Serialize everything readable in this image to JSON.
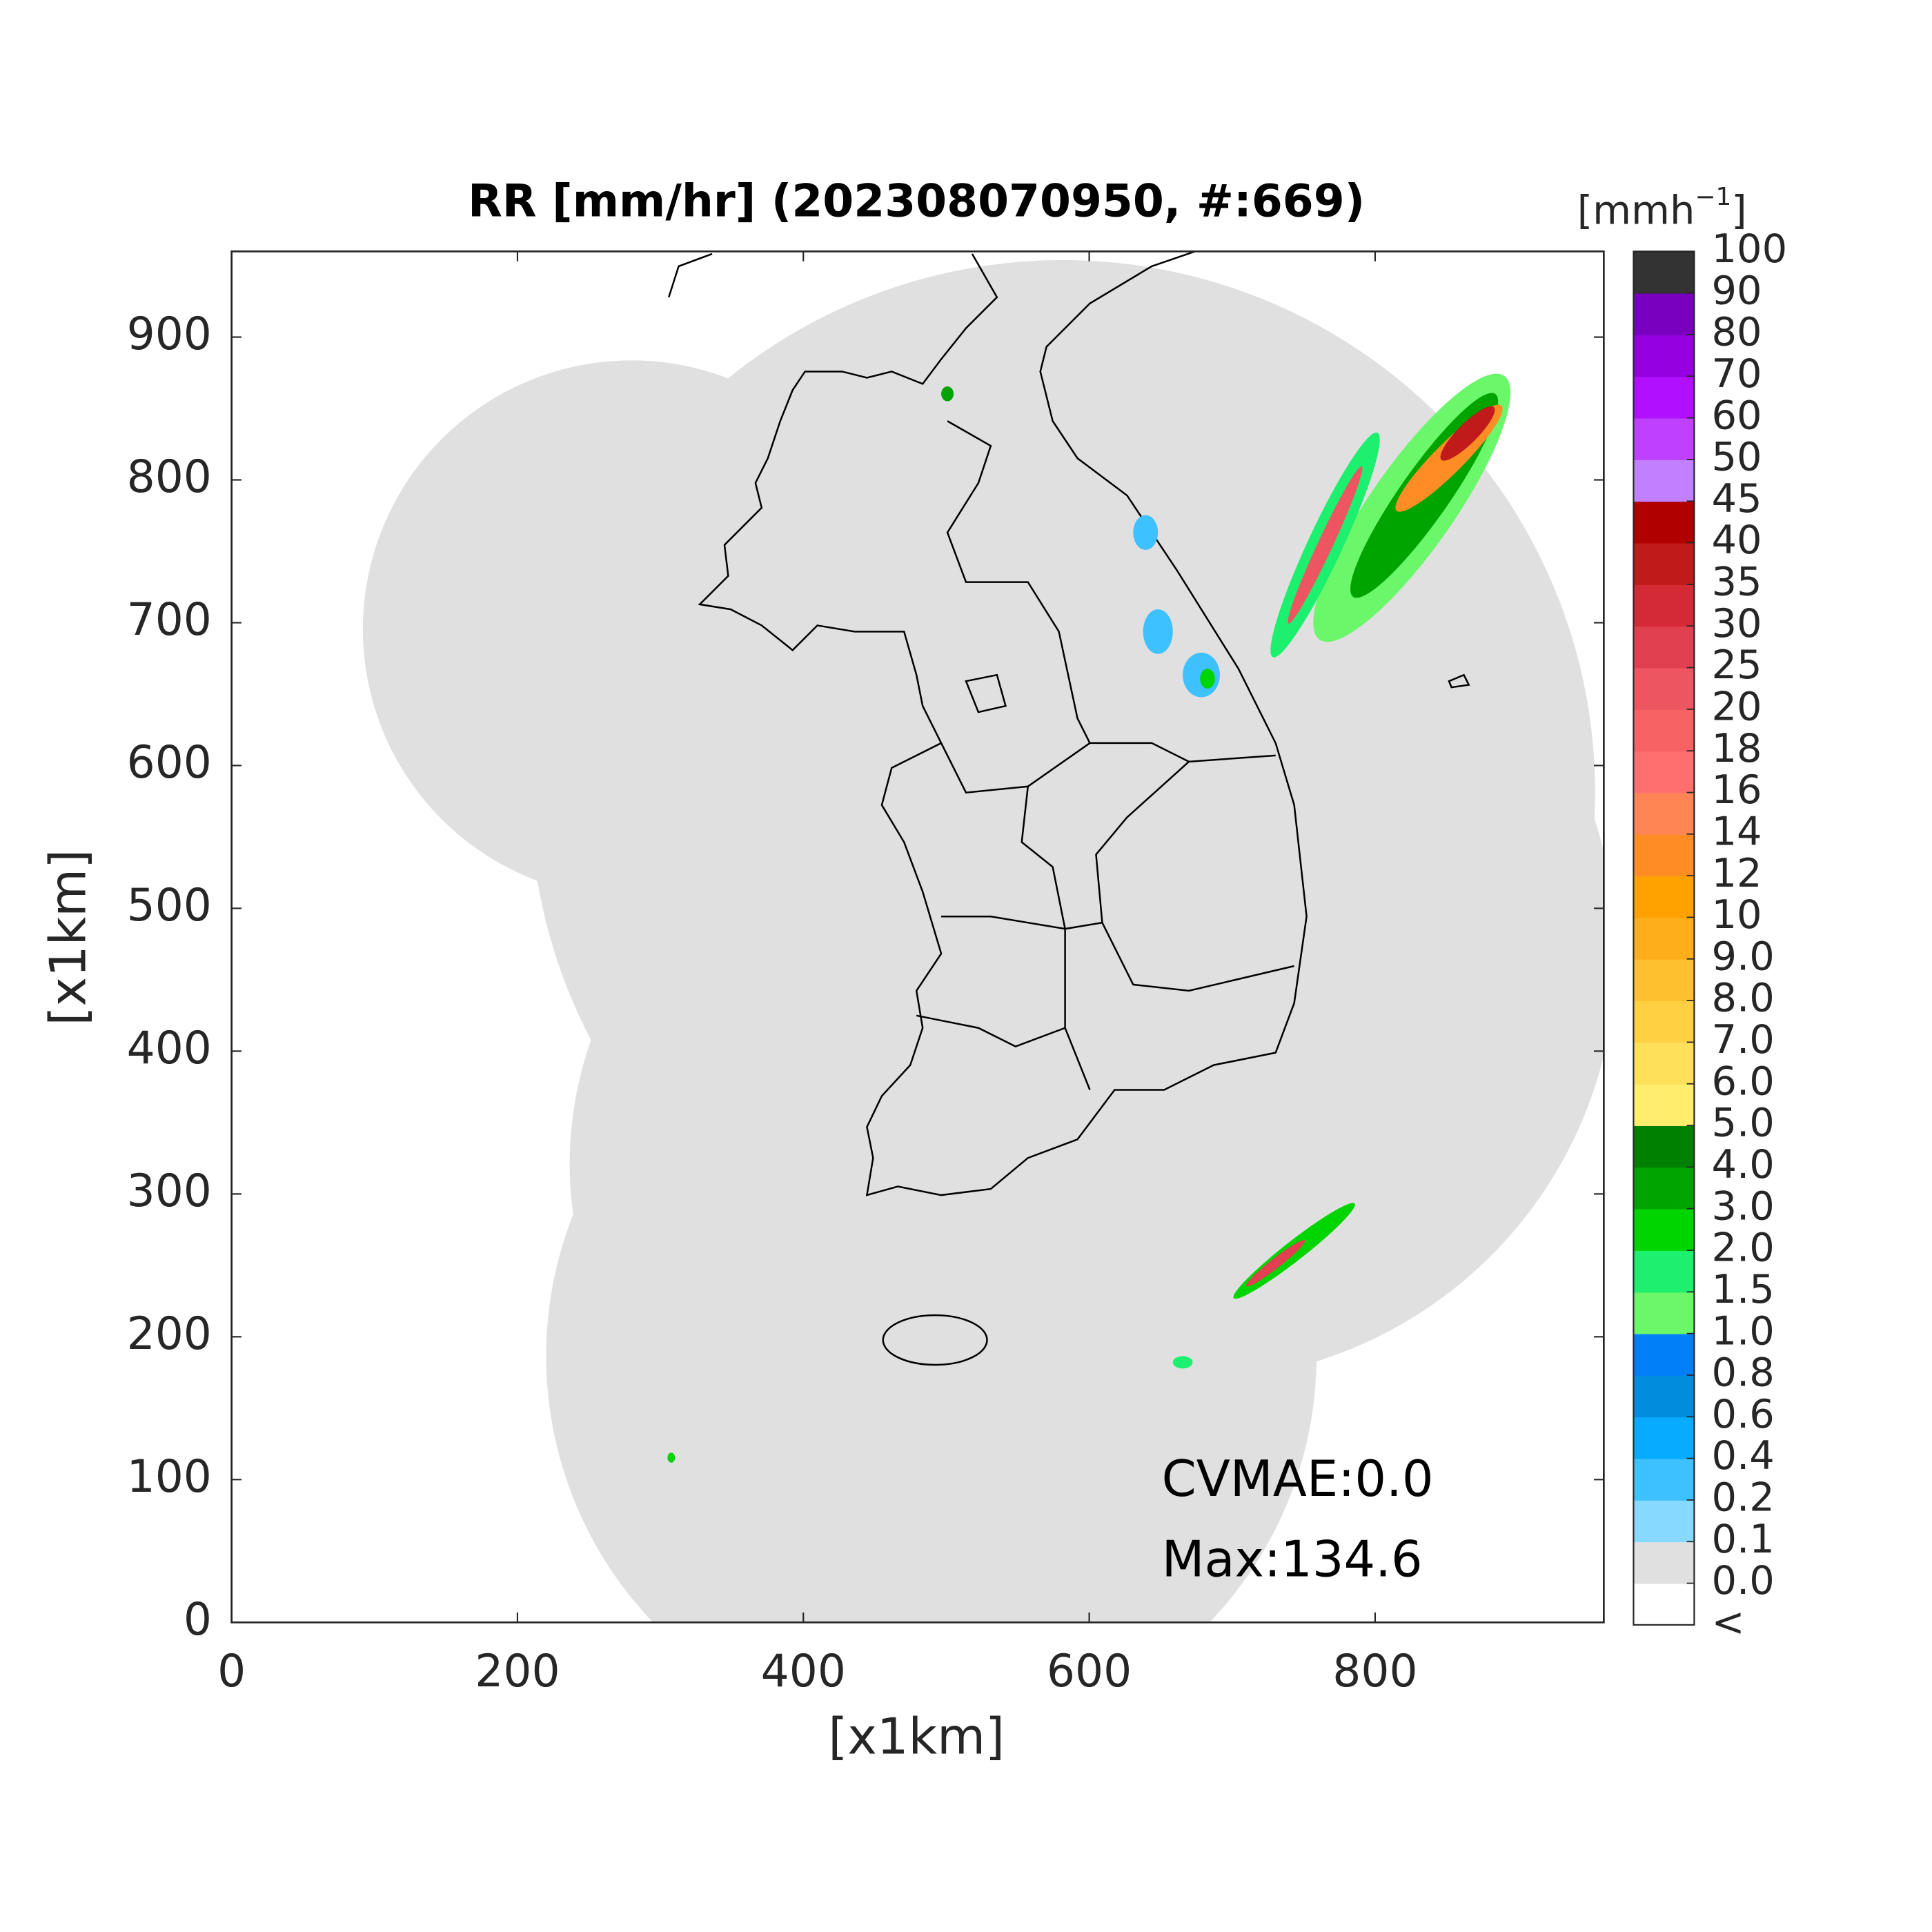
{
  "chart_data": {
    "type": "map",
    "title": "RR [mm/hr] (202308070950, #:669)",
    "xlabel": "[x1km]",
    "ylabel": "[x1km]",
    "xlim": [
      0,
      960
    ],
    "ylim": [
      0,
      960
    ],
    "xticks": [
      0,
      200,
      400,
      600,
      800
    ],
    "yticks": [
      0,
      100,
      200,
      300,
      400,
      500,
      600,
      700,
      800,
      900
    ],
    "annotations": [
      "CVMAE:0.0",
      "Max:134.6"
    ],
    "colorbar": {
      "unit": "[mmh",
      "unit_superscript": "−1",
      "unit_suffix": "]",
      "below_label": "<",
      "ticks": [
        {
          "value": 0,
          "label": "0.0"
        },
        {
          "value": 0.1,
          "label": "0.1"
        },
        {
          "value": 0.2,
          "label": "0.2"
        },
        {
          "value": 0.4,
          "label": "0.4"
        },
        {
          "value": 0.6,
          "label": "0.6"
        },
        {
          "value": 0.8,
          "label": "0.8"
        },
        {
          "value": 1,
          "label": "1.0"
        },
        {
          "value": 1.5,
          "label": "1.5"
        },
        {
          "value": 2,
          "label": "2.0"
        },
        {
          "value": 3,
          "label": "3.0"
        },
        {
          "value": 4,
          "label": "4.0"
        },
        {
          "value": 5,
          "label": "5.0"
        },
        {
          "value": 6,
          "label": "6.0"
        },
        {
          "value": 7,
          "label": "7.0"
        },
        {
          "value": 8,
          "label": "8.0"
        },
        {
          "value": 9,
          "label": "9.0"
        },
        10,
        12,
        14,
        16,
        18,
        20,
        25,
        30,
        35,
        40,
        45,
        50,
        60,
        70,
        80,
        90,
        100
      ],
      "colors": [
        "#ffffff",
        "#e0e0e0",
        "#87d9ff",
        "#3ec1ff",
        "#07abff",
        "#008dde",
        "#007ff9",
        "#6af76a",
        "#1cf06e",
        "#00d500",
        "#00a400",
        "#008000",
        "#ffee6e",
        "#ffe05a",
        "#ffd042",
        "#ffc030",
        "#ffae1b",
        "#ffa200",
        "#ff8c24",
        "#ff8555",
        "#ff6f6f",
        "#f76264",
        "#ed5560",
        "#e04050",
        "#d42a35",
        "#c01a1a",
        "#b00000",
        "#c080ff",
        "#c040ff",
        "#b010ff",
        "#9400e0",
        "#7a00c0",
        "#333333"
      ]
    }
  }
}
